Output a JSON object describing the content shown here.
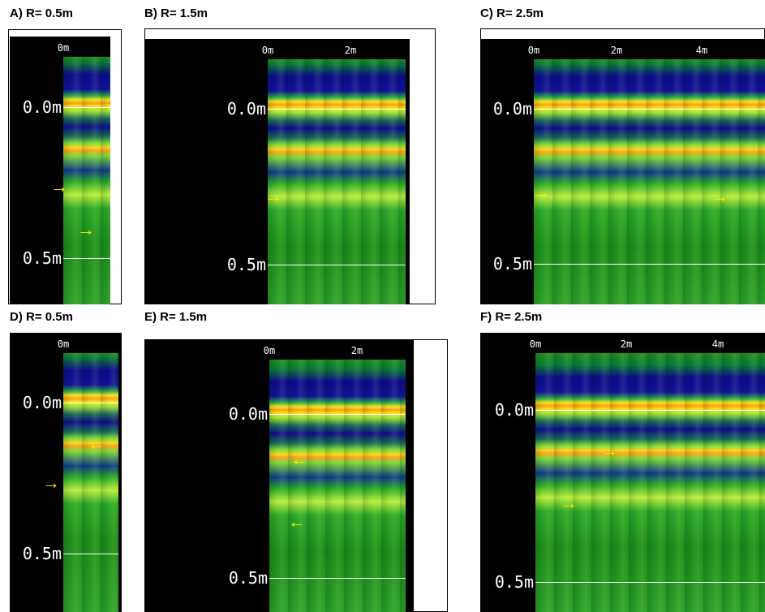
{
  "panels": [
    {
      "label": "A) R= 0.5m",
      "x_ticks": [
        "0m"
      ],
      "depth_ticks": [
        "0.0m",
        "0.5m"
      ]
    },
    {
      "label": "B) R= 1.5m",
      "x_ticks": [
        "0m",
        "2m"
      ],
      "depth_ticks": [
        "0.0m",
        "0.5m"
      ]
    },
    {
      "label": "C) R= 2.5m",
      "x_ticks": [
        "0m",
        "2m",
        "4m"
      ],
      "depth_ticks": [
        "0.0m",
        "0.5m"
      ]
    },
    {
      "label": "D) R= 0.5m",
      "x_ticks": [
        "0m"
      ],
      "depth_ticks": [
        "0.0m",
        "0.5m"
      ]
    },
    {
      "label": "E) R= 1.5m",
      "x_ticks": [
        "0m",
        "2m"
      ],
      "depth_ticks": [
        "0.0m",
        "0.5m"
      ]
    },
    {
      "label": "F) R= 2.5m",
      "x_ticks": [
        "0m",
        "2m",
        "4m"
      ],
      "depth_ticks": [
        "0.0m",
        "0.5m"
      ]
    }
  ]
}
